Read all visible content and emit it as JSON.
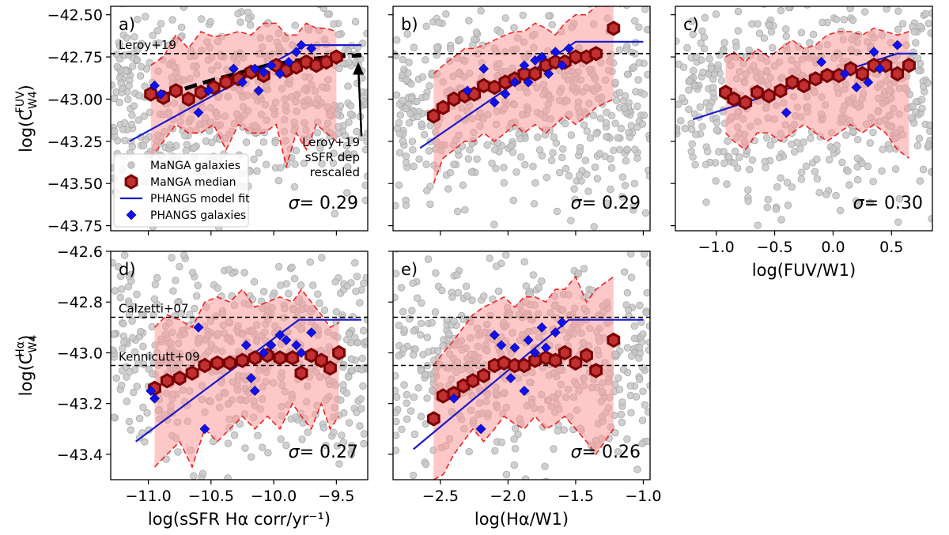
{
  "chart_data": [
    {
      "type": "scatter",
      "panel_label": "a)",
      "sigma_label": "σ= 0.29",
      "xlim": [
        -11.3,
        -9.25
      ],
      "ylim": [
        -43.78,
        -42.45
      ],
      "xticks": [
        -11.0,
        -10.5,
        -10.0,
        -9.5
      ],
      "xtick_labels": [
        "−11.0",
        "−10.5",
        "−10.0",
        "−9.5"
      ],
      "show_xtick_labels": false,
      "yticks": [
        -42.5,
        -42.75,
        -43.0,
        -43.25,
        -43.5,
        -43.75
      ],
      "ytick_labels": [
        "−42.50",
        "−42.75",
        "−43.00",
        "−43.25",
        "−43.50",
        "−43.75"
      ],
      "ylabel": "log(C",
      "ylabel_sub": "W4",
      "ylabel_sup": "FUV",
      "ylabel_end": ")",
      "hlines": [
        {
          "y": -42.73,
          "label": "Leroy+19"
        }
      ],
      "scatter_cloud": {
        "x_range": [
          -11.3,
          -9.25
        ],
        "y_center": -43.0,
        "y_spread": 0.3,
        "n": 520,
        "seed": 11
      },
      "median": {
        "x": [
          -10.98,
          -10.88,
          -10.78,
          -10.68,
          -10.58,
          -10.48,
          -10.38,
          -10.28,
          -10.18,
          -10.08,
          -9.98,
          -9.9,
          -9.82,
          -9.74,
          -9.66,
          -9.58,
          -9.5
        ],
        "y": [
          -42.97,
          -42.99,
          -42.95,
          -43.0,
          -42.96,
          -42.93,
          -42.9,
          -42.88,
          -42.84,
          -42.86,
          -42.8,
          -42.83,
          -42.81,
          -42.78,
          -42.8,
          -42.78,
          -42.75
        ]
      },
      "band_lower": [
        -43.35,
        -43.25,
        -43.15,
        -43.2,
        -43.2,
        -43.15,
        -43.3,
        -43.15,
        -43.2,
        -43.2,
        -43.15,
        -43.4,
        -43.2,
        -43.3,
        -43.15,
        -43.2,
        -43.25
      ],
      "band_upper": [
        -42.8,
        -42.75,
        -42.62,
        -42.7,
        -42.6,
        -42.63,
        -42.62,
        -42.6,
        -42.62,
        -42.55,
        -42.55,
        -42.62,
        -42.62,
        -42.55,
        -42.58,
        -42.58,
        -42.6
      ],
      "fit": {
        "x": [
          -11.15,
          -9.75,
          -9.3
        ],
        "y": [
          -43.25,
          -42.68,
          -42.68
        ]
      },
      "phangs": {
        "x": [
          -10.95,
          -10.9,
          -10.6,
          -10.52,
          -10.32,
          -10.25,
          -10.15,
          -10.12,
          -10.08,
          -10.02,
          -9.95,
          -9.88,
          -9.82,
          -9.78,
          -9.7
        ],
        "y": [
          -42.92,
          -42.97,
          -43.08,
          -42.95,
          -42.82,
          -42.9,
          -42.82,
          -42.95,
          -42.84,
          -42.8,
          -42.85,
          -42.78,
          -42.72,
          -42.68,
          -42.7
        ]
      },
      "leroy_rescaled": {
        "x": [
          -11.0,
          -10.8,
          -10.55,
          -10.3,
          -10.05,
          -9.8,
          -9.55,
          -9.3
        ],
        "y": [
          -43.0,
          -42.96,
          -42.9,
          -42.85,
          -42.8,
          -42.77,
          -42.75,
          -42.74
        ]
      },
      "arrow_annotation": [
        "Leroy+19",
        "sSFR dep",
        "rescaled"
      ],
      "legend": {
        "placement": "lower-left",
        "entries": [
          "MaNGA galaxies",
          "MaNGA median",
          "PHANGS model fit",
          "PHANGS galaxies"
        ]
      }
    },
    {
      "type": "scatter",
      "panel_label": "b)",
      "sigma_label": "σ= 0.29",
      "xlim": [
        -2.85,
        -0.95
      ],
      "ylim": [
        -43.78,
        -42.45
      ],
      "xticks": [
        -2.5,
        -2.0,
        -1.5,
        -1.0
      ],
      "xtick_labels": [
        "−2.5",
        "−2.0",
        "−1.5",
        "−1.0"
      ],
      "show_xtick_labels": false,
      "yticks": [
        -42.5,
        -42.75,
        -43.0,
        -43.25,
        -43.5,
        -43.75
      ],
      "hlines": [
        {
          "y": -42.73,
          "label": ""
        }
      ],
      "scatter_cloud": {
        "x_range": [
          -2.85,
          -0.95
        ],
        "y_center": -43.0,
        "y_spread": 0.3,
        "n": 520,
        "seed": 23
      },
      "median": {
        "x": [
          -2.55,
          -2.48,
          -2.4,
          -2.32,
          -2.25,
          -2.18,
          -2.1,
          -2.02,
          -1.95,
          -1.88,
          -1.8,
          -1.72,
          -1.65,
          -1.58,
          -1.5,
          -1.42,
          -1.35,
          -1.22
        ],
        "y": [
          -43.1,
          -43.05,
          -43.0,
          -42.98,
          -42.97,
          -42.92,
          -42.93,
          -42.9,
          -42.88,
          -42.85,
          -42.85,
          -42.8,
          -42.78,
          -42.78,
          -42.75,
          -42.75,
          -42.73,
          -42.58
        ]
      },
      "band_lower": [
        -43.5,
        -43.35,
        -43.3,
        -43.25,
        -43.25,
        -43.2,
        -43.25,
        -43.2,
        -43.15,
        -43.2,
        -43.15,
        -43.2,
        -43.15,
        -43.1,
        -43.15,
        -43.1,
        -43.05,
        -43.0
      ],
      "band_upper": [
        -42.85,
        -42.8,
        -42.75,
        -42.7,
        -42.7,
        -42.68,
        -42.65,
        -42.62,
        -42.6,
        -42.6,
        -42.55,
        -42.58,
        -42.62,
        -42.55,
        -42.5,
        -42.5,
        -42.45,
        -42.45
      ],
      "fit": {
        "x": [
          -2.65,
          -1.5,
          -1.0
        ],
        "y": [
          -43.29,
          -42.66,
          -42.66
        ]
      },
      "phangs": {
        "x": [
          -2.3,
          -2.18,
          -2.1,
          -2.02,
          -1.95,
          -1.88,
          -1.85,
          -1.8,
          -1.75,
          -1.7,
          -1.65,
          -1.6,
          -1.55
        ],
        "y": [
          -42.95,
          -42.82,
          -43.02,
          -42.97,
          -42.9,
          -42.8,
          -42.9,
          -42.77,
          -42.75,
          -42.85,
          -42.72,
          -42.8,
          -42.7
        ]
      }
    },
    {
      "type": "scatter",
      "panel_label": "c)",
      "sigma_label": "σ= 0.30",
      "xlim": [
        -1.35,
        0.85
      ],
      "ylim": [
        -43.78,
        -42.45
      ],
      "xticks": [
        -1.0,
        -0.5,
        0.0,
        0.5
      ],
      "xtick_labels": [
        "−1.0",
        "−0.5",
        "0.0",
        "0.5"
      ],
      "show_xtick_labels": true,
      "xlabel": "log(FUV/W1)",
      "yticks": [
        -42.5,
        -42.75,
        -43.0,
        -43.25,
        -43.5,
        -43.75
      ],
      "hlines": [
        {
          "y": -42.73,
          "label": ""
        }
      ],
      "scatter_cloud": {
        "x_range": [
          -1.35,
          0.85
        ],
        "y_center": -43.0,
        "y_spread": 0.3,
        "n": 520,
        "seed": 37
      },
      "median": {
        "x": [
          -0.92,
          -0.85,
          -0.75,
          -0.65,
          -0.55,
          -0.45,
          -0.35,
          -0.25,
          -0.15,
          -0.05,
          0.05,
          0.15,
          0.25,
          0.35,
          0.45,
          0.55,
          0.65
        ],
        "y": [
          -42.96,
          -43.0,
          -43.02,
          -42.96,
          -42.98,
          -42.95,
          -42.9,
          -42.92,
          -42.88,
          -42.86,
          -42.86,
          -42.82,
          -42.85,
          -42.8,
          -42.8,
          -42.85,
          -42.8
        ]
      },
      "band_lower": [
        -43.2,
        -43.25,
        -43.3,
        -43.2,
        -43.2,
        -43.25,
        -43.2,
        -43.15,
        -43.2,
        -43.25,
        -43.2,
        -43.15,
        -43.2,
        -43.15,
        -43.2,
        -43.3,
        -43.35
      ],
      "band_upper": [
        -42.75,
        -42.72,
        -42.78,
        -42.7,
        -42.75,
        -42.7,
        -42.65,
        -42.7,
        -42.68,
        -42.62,
        -42.6,
        -42.6,
        -42.62,
        -42.58,
        -42.6,
        -42.62,
        -42.6
      ],
      "fit": {
        "x": [
          -1.2,
          0.55,
          0.7
        ],
        "y": [
          -43.12,
          -42.73,
          -42.73
        ]
      },
      "phangs": {
        "x": [
          -0.4,
          -0.1,
          0.1,
          0.2,
          0.3,
          0.35,
          0.4,
          0.55
        ],
        "y": [
          -43.08,
          -42.78,
          -42.85,
          -42.93,
          -42.9,
          -42.72,
          -42.82,
          -42.68
        ]
      }
    },
    {
      "type": "scatter",
      "panel_label": "d)",
      "sigma_label": "σ= 0.27",
      "xlim": [
        -11.3,
        -9.25
      ],
      "ylim": [
        -43.5,
        -42.6
      ],
      "xticks": [
        -11.0,
        -10.5,
        -10.0,
        -9.5
      ],
      "xtick_labels": [
        "−11.0",
        "−10.5",
        "−10.0",
        "−9.5"
      ],
      "show_xtick_labels": true,
      "xlabel": "log(sSFR Hα corr/yr⁻¹)",
      "yticks": [
        -42.6,
        -42.8,
        -43.0,
        -43.2,
        -43.4
      ],
      "ytick_labels": [
        "−42.6",
        "−42.8",
        "−43.0",
        "−43.2",
        "−43.4"
      ],
      "ylabel": "log(C",
      "ylabel_sub": "W4",
      "ylabel_sup": "Hα",
      "ylabel_end": ")",
      "hlines": [
        {
          "y": -42.86,
          "label": "Calzetti+07"
        },
        {
          "y": -43.05,
          "label": "Kennicutt+09"
        }
      ],
      "scatter_cloud": {
        "x_range": [
          -11.3,
          -9.25
        ],
        "y_center": -43.02,
        "y_spread": 0.2,
        "n": 520,
        "seed": 41
      },
      "median": {
        "x": [
          -10.95,
          -10.85,
          -10.75,
          -10.65,
          -10.55,
          -10.45,
          -10.35,
          -10.25,
          -10.15,
          -10.05,
          -9.95,
          -9.85,
          -9.78,
          -9.7,
          -9.62,
          -9.55,
          -9.48
        ],
        "y": [
          -43.14,
          -43.11,
          -43.1,
          -43.08,
          -43.05,
          -43.04,
          -43.04,
          -43.03,
          -43.02,
          -43.01,
          -43.02,
          -43.02,
          -43.08,
          -43.01,
          -43.03,
          -43.06,
          -43.0
        ]
      },
      "band_lower": [
        -43.45,
        -43.4,
        -43.35,
        -43.45,
        -43.3,
        -43.35,
        -43.3,
        -43.25,
        -43.3,
        -43.25,
        -43.3,
        -43.2,
        -43.25,
        -43.3,
        -43.2,
        -43.3,
        -43.25
      ],
      "band_upper": [
        -42.9,
        -42.85,
        -42.87,
        -42.9,
        -42.8,
        -42.78,
        -42.8,
        -42.75,
        -42.82,
        -42.8,
        -42.78,
        -42.8,
        -42.75,
        -42.8,
        -42.85,
        -42.9,
        -42.88
      ],
      "fit": {
        "x": [
          -11.1,
          -9.8,
          -9.3
        ],
        "y": [
          -43.35,
          -42.87,
          -42.87
        ]
      },
      "phangs": {
        "x": [
          -10.98,
          -10.95,
          -10.6,
          -10.55,
          -10.22,
          -10.18,
          -10.15,
          -10.08,
          -10.02,
          -9.95,
          -9.9,
          -9.82,
          -9.78,
          -9.7
        ],
        "y": [
          -43.15,
          -43.18,
          -42.9,
          -43.3,
          -42.97,
          -43.1,
          -43.15,
          -43.0,
          -42.97,
          -42.93,
          -42.95,
          -42.97,
          -43.0,
          -42.92
        ]
      }
    },
    {
      "type": "scatter",
      "panel_label": "e)",
      "sigma_label": "σ= 0.26",
      "xlim": [
        -2.85,
        -0.95
      ],
      "ylim": [
        -43.5,
        -42.6
      ],
      "xticks": [
        -2.5,
        -2.0,
        -1.5,
        -1.0
      ],
      "xtick_labels": [
        "−2.5",
        "−2.0",
        "−1.5",
        "−1.0"
      ],
      "show_xtick_labels": true,
      "xlabel": "log(Hα/W1)",
      "yticks": [
        -42.6,
        -42.8,
        -43.0,
        -43.2,
        -43.4
      ],
      "hlines": [
        {
          "y": -42.86,
          "label": ""
        },
        {
          "y": -43.05,
          "label": ""
        }
      ],
      "scatter_cloud": {
        "x_range": [
          -2.85,
          -0.95
        ],
        "y_center": -43.02,
        "y_spread": 0.2,
        "n": 520,
        "seed": 53
      },
      "median": {
        "x": [
          -2.55,
          -2.48,
          -2.4,
          -2.33,
          -2.26,
          -2.18,
          -2.1,
          -2.03,
          -1.95,
          -1.88,
          -1.8,
          -1.72,
          -1.65,
          -1.58,
          -1.5,
          -1.42,
          -1.35,
          -1.22
        ],
        "y": [
          -43.26,
          -43.17,
          -43.16,
          -43.13,
          -43.11,
          -43.09,
          -43.05,
          -43.04,
          -43.05,
          -43.05,
          -43.03,
          -43.02,
          -43.03,
          -43.0,
          -43.04,
          -43.01,
          -43.07,
          -42.95
        ]
      },
      "band_lower": [
        -43.5,
        -43.48,
        -43.4,
        -43.35,
        -43.3,
        -43.35,
        -43.3,
        -43.25,
        -43.28,
        -43.3,
        -43.25,
        -43.3,
        -43.28,
        -43.25,
        -43.3,
        -43.35,
        -43.4,
        -43.3
      ],
      "band_upper": [
        -43.05,
        -43.0,
        -42.95,
        -42.9,
        -42.85,
        -42.82,
        -42.8,
        -42.78,
        -42.82,
        -42.78,
        -42.78,
        -42.8,
        -42.75,
        -42.75,
        -42.7,
        -42.8,
        -42.75,
        -42.7
      ],
      "fit": {
        "x": [
          -2.7,
          -1.55,
          -1.0
        ],
        "y": [
          -43.38,
          -42.87,
          -42.87
        ]
      },
      "phangs": {
        "x": [
          -2.4,
          -2.2,
          -2.1,
          -2.05,
          -1.98,
          -1.95,
          -1.88,
          -1.85,
          -1.8,
          -1.75,
          -1.72,
          -1.65,
          -1.6
        ],
        "y": [
          -43.18,
          -43.3,
          -42.93,
          -42.97,
          -43.1,
          -42.98,
          -43.15,
          -42.95,
          -43.0,
          -42.9,
          -42.98,
          -42.92,
          -42.88
        ]
      }
    }
  ]
}
